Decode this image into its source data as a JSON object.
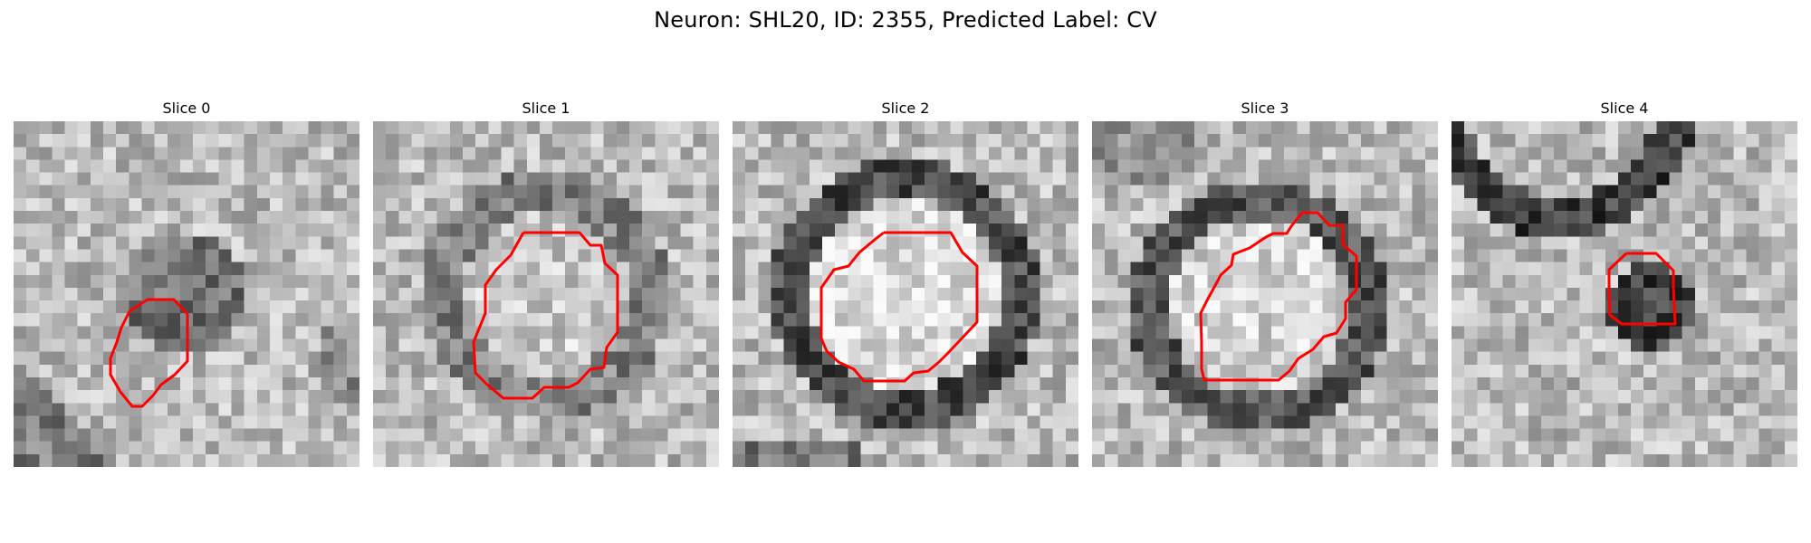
{
  "figure": {
    "title": "Neuron: SHL20, ID: 2355, Predicted Label: CV",
    "outline_color": "#ff0000"
  },
  "slices": [
    {
      "title": "Slice 0"
    },
    {
      "title": "Slice 1"
    },
    {
      "title": "Slice 2"
    },
    {
      "title": "Slice 3"
    },
    {
      "title": "Slice 4"
    }
  ]
}
